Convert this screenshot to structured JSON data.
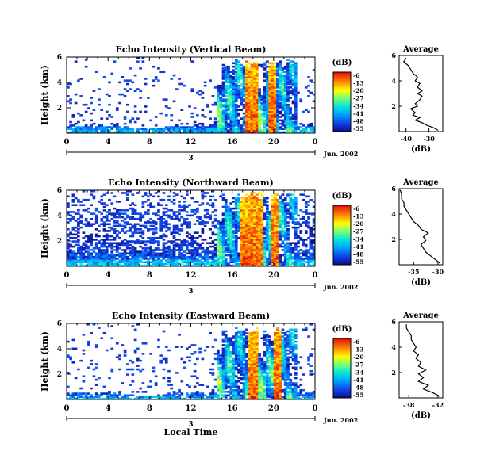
{
  "figure": {
    "xlabel": "Local Time",
    "date_label": "Jun. 2002"
  },
  "chart_data": [
    {
      "type": "heatmap",
      "title": "Echo Intensity (Vertical Beam)",
      "ylabel": "Height (km)",
      "x_ticks": [
        "0",
        "4",
        "8",
        "12",
        "16",
        "20",
        "0"
      ],
      "x_range": [
        0,
        24
      ],
      "y_ticks": [
        "2",
        "4",
        "6"
      ],
      "y_range": [
        0,
        6
      ],
      "day_marker": "3",
      "colorbar": {
        "unit": "(dB)",
        "labels": [
          "-6",
          "-13",
          "-20",
          "-27",
          "-34",
          "-41",
          "-48",
          "-55"
        ]
      },
      "profile": {
        "title": "Average",
        "xlabel": "(dB)",
        "x_ticks": [
          "-40",
          "-30"
        ],
        "x_range": [
          -43,
          -24
        ],
        "y_ticks": [
          "2",
          "4",
          "6"
        ],
        "y_range": [
          0,
          6
        ],
        "points": [
          [
            -26,
            0.1
          ],
          [
            -28,
            0.3
          ],
          [
            -31,
            0.5
          ],
          [
            -33,
            0.7
          ],
          [
            -36,
            0.9
          ],
          [
            -34,
            1.1
          ],
          [
            -37,
            1.3
          ],
          [
            -36,
            1.5
          ],
          [
            -38,
            1.8
          ],
          [
            -35,
            2.0
          ],
          [
            -36,
            2.2
          ],
          [
            -34,
            2.5
          ],
          [
            -33,
            2.8
          ],
          [
            -35,
            3.0
          ],
          [
            -33,
            3.2
          ],
          [
            -35,
            3.5
          ],
          [
            -34,
            3.8
          ],
          [
            -36,
            4.0
          ],
          [
            -35,
            4.3
          ],
          [
            -37,
            4.6
          ],
          [
            -38,
            4.9
          ],
          [
            -39,
            5.2
          ],
          [
            -41,
            5.5
          ],
          [
            -40,
            5.8
          ]
        ]
      }
    },
    {
      "type": "heatmap",
      "title": "Echo Intensity (Northward Beam)",
      "ylabel": "Height (km)",
      "x_ticks": [
        "0",
        "4",
        "8",
        "12",
        "16",
        "20",
        "0"
      ],
      "x_range": [
        0,
        24
      ],
      "y_ticks": [
        "2",
        "4",
        "6"
      ],
      "y_range": [
        0,
        6
      ],
      "day_marker": "3",
      "colorbar": {
        "unit": "(dB)",
        "labels": [
          "-6",
          "-13",
          "-20",
          "-27",
          "-34",
          "-41",
          "-48",
          "-55"
        ]
      },
      "profile": {
        "title": "Average",
        "xlabel": "(dB)",
        "x_ticks": [
          "-35",
          "-30"
        ],
        "x_range": [
          -38,
          -29
        ],
        "y_ticks": [
          "2",
          "4",
          "6"
        ],
        "y_range": [
          0,
          6
        ],
        "points": [
          [
            -29.5,
            0.1
          ],
          [
            -30.5,
            0.4
          ],
          [
            -31.5,
            0.7
          ],
          [
            -32.5,
            1.0
          ],
          [
            -33,
            1.3
          ],
          [
            -33.5,
            1.6
          ],
          [
            -32.5,
            1.9
          ],
          [
            -33,
            2.2
          ],
          [
            -32,
            2.5
          ],
          [
            -33.5,
            2.8
          ],
          [
            -34,
            3.1
          ],
          [
            -35,
            3.4
          ],
          [
            -35.5,
            3.7
          ],
          [
            -36,
            4.0
          ],
          [
            -36.5,
            4.3
          ],
          [
            -37,
            4.6
          ],
          [
            -37,
            4.9
          ],
          [
            -37.5,
            5.2
          ],
          [
            -37.5,
            5.6
          ],
          [
            -37.8,
            5.9
          ]
        ]
      }
    },
    {
      "type": "heatmap",
      "title": "Echo Intensity (Eastward Beam)",
      "ylabel": "Height (km)",
      "x_ticks": [
        "0",
        "4",
        "8",
        "12",
        "16",
        "20",
        "0"
      ],
      "x_range": [
        0,
        24
      ],
      "y_ticks": [
        "2",
        "4",
        "6"
      ],
      "y_range": [
        0,
        6
      ],
      "day_marker": "3",
      "colorbar": {
        "unit": "(dB)",
        "labels": [
          "-6",
          "-13",
          "-20",
          "-27",
          "-34",
          "-41",
          "-48",
          "-55"
        ]
      },
      "profile": {
        "title": "Average",
        "xlabel": "(dB)",
        "x_ticks": [
          "-38",
          "-32"
        ],
        "x_range": [
          -40,
          -31
        ],
        "y_ticks": [
          "2",
          "4",
          "6"
        ],
        "y_range": [
          0,
          6
        ],
        "points": [
          [
            -31.5,
            0.1
          ],
          [
            -33,
            0.4
          ],
          [
            -35,
            0.7
          ],
          [
            -34,
            1.0
          ],
          [
            -36,
            1.3
          ],
          [
            -35,
            1.6
          ],
          [
            -36,
            1.9
          ],
          [
            -34.5,
            2.2
          ],
          [
            -36,
            2.5
          ],
          [
            -35.5,
            2.8
          ],
          [
            -36.5,
            3.1
          ],
          [
            -36,
            3.4
          ],
          [
            -37,
            3.7
          ],
          [
            -36.5,
            4.0
          ],
          [
            -37,
            4.3
          ],
          [
            -37.5,
            4.6
          ],
          [
            -37.5,
            4.9
          ],
          [
            -38,
            5.2
          ],
          [
            -38.5,
            5.5
          ],
          [
            -38.5,
            5.8
          ]
        ]
      }
    }
  ]
}
